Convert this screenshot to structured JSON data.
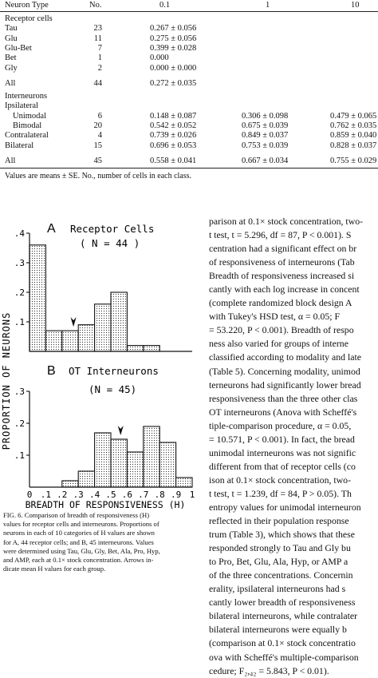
{
  "table": {
    "headers": [
      "Neuron Type",
      "No.",
      "0.1",
      "1",
      "10"
    ],
    "groups": [
      {
        "label": "Receptor cells",
        "rows": [
          {
            "name": "Tau",
            "indent": 1,
            "n": "23",
            "v01": "0.267 ± 0.056",
            "v1": "",
            "v10": ""
          },
          {
            "name": "Glu",
            "indent": 1,
            "n": "11",
            "v01": "0.275 ± 0.056",
            "v1": "",
            "v10": ""
          },
          {
            "name": "Glu-Bet",
            "indent": 1,
            "n": "7",
            "v01": "0.399 ± 0.028",
            "v1": "",
            "v10": ""
          },
          {
            "name": "Bet",
            "indent": 1,
            "n": "1",
            "v01": "0.000",
            "v1": "",
            "v10": ""
          },
          {
            "name": "Gly",
            "indent": 1,
            "n": "2",
            "v01": "0.000 ± 0.000",
            "v1": "",
            "v10": ""
          },
          {
            "name": "All",
            "indent": 1,
            "n": "44",
            "v01": "0.272 ± 0.035",
            "v1": "",
            "v10": "",
            "gap": true
          }
        ]
      },
      {
        "label": "Interneurons",
        "rows": [
          {
            "name": "Ipsilateral",
            "indent": 1,
            "n": "",
            "v01": "",
            "v1": "",
            "v10": ""
          },
          {
            "name": "Unimodal",
            "indent": 2,
            "n": "6",
            "v01": "0.148 ± 0.087",
            "v1": "0.306 ± 0.098",
            "v10": "0.479 ± 0.065"
          },
          {
            "name": "Bimodal",
            "indent": 2,
            "n": "20",
            "v01": "0.542 ± 0.052",
            "v1": "0.675 ± 0.039",
            "v10": "0.762 ± 0.035"
          },
          {
            "name": "Contralateral",
            "indent": 1,
            "n": "4",
            "v01": "0.739 ± 0.026",
            "v1": "0.849 ± 0.037",
            "v10": "0.859 ± 0.040"
          },
          {
            "name": "Bilateral",
            "indent": 1,
            "n": "15",
            "v01": "0.696 ± 0.053",
            "v1": "0.753 ± 0.039",
            "v10": "0.828 ± 0.037"
          },
          {
            "name": "All",
            "indent": 1,
            "n": "45",
            "v01": "0.558 ± 0.041",
            "v1": "0.667 ± 0.034",
            "v10": "0.755 ± 0.029",
            "gap": true
          }
        ]
      }
    ],
    "note": "Values are means ± SE. No., number of cells in each class."
  },
  "figure": {
    "y_axis_label": "PROPORTION  OF  NEURONS",
    "x_axis_label": "BREADTH  OF  RESPONSIVENESS (H)",
    "x_ticks": [
      "0",
      ".1",
      ".2",
      ".3",
      ".4",
      ".5",
      ".6",
      ".7",
      ".8",
      ".9",
      "1"
    ],
    "y_ticks_a": [
      ".4",
      ".3",
      ".2",
      ".1"
    ],
    "y_ticks_b": [
      ".3",
      ".2",
      ".1"
    ],
    "panel_a": {
      "letter": "A",
      "title": "Receptor Cells",
      "n_label": "( N = 44 )"
    },
    "panel_b": {
      "letter": "B",
      "title": "OT  Interneurons",
      "n_label": "(N = 45)"
    }
  },
  "chart_data": [
    {
      "type": "bar",
      "title": "Receptor Cells",
      "categories": [
        "0",
        ".1",
        ".2",
        ".3",
        ".4",
        ".5",
        ".6",
        ".7",
        ".8",
        ".9"
      ],
      "values": [
        0.36,
        0.07,
        0.07,
        0.09,
        0.16,
        0.2,
        0.02,
        0.02,
        0.0,
        0.0
      ],
      "mean_marker": 0.27,
      "xlabel": "BREADTH OF RESPONSIVENESS (H)",
      "ylabel": "PROPORTION OF NEURONS",
      "ylim": [
        0,
        0.4
      ],
      "grid": false
    },
    {
      "type": "bar",
      "title": "OT Interneurons",
      "categories": [
        "0",
        ".1",
        ".2",
        ".3",
        ".4",
        ".5",
        ".6",
        ".7",
        ".8",
        ".9"
      ],
      "values": [
        0.0,
        0.0,
        0.02,
        0.05,
        0.17,
        0.15,
        0.11,
        0.19,
        0.14,
        0.03
      ],
      "mean_marker": 0.56,
      "xlabel": "BREADTH OF RESPONSIVENESS (H)",
      "ylabel": "PROPORTION OF NEURONS",
      "ylim": [
        0,
        0.3
      ],
      "grid": false
    }
  ],
  "caption": {
    "lines": [
      "FIG. 6.   Comparison of breadth of responsiveness (H)",
      "values for receptor cells and interneurons. Proportions of",
      "neurons in each of 10 categories of H values are shown",
      "for A, 44 receptor cells; and B, 45 interneurons. Values",
      "were determined using Tau, Glu, Gly, Bet, Ala, Pro, Hyp,",
      "and AMP, each at 0.1× stock concentration. Arrows in-",
      "dicate mean H values for each group."
    ]
  },
  "body_text": {
    "lines": [
      "parison at 0.1× stock concentration, two-",
      "t test, t = 5.296, df = 87, P < 0.001). S",
      "centration had a significant effect on br",
      "of responsiveness of interneurons (Tab",
      "Breadth of responsiveness increased si",
      "cantly with each log increase in concent",
      "(complete randomized block design A",
      "with Tukey's HSD test, α = 0.05; F",
      "= 53.220, P < 0.001). Breadth of respo",
      "ness also varied for groups of interne",
      "classified according to modality and late",
      "(Table 5). Concerning modality, unimod",
      "terneurons had significantly lower bread",
      "responsiveness than the three other clas",
      "OT interneurons (Anova with Scheffé's",
      "tiple-comparison procedure, α = 0.05,",
      "= 10.571, P < 0.001). In fact, the bread",
      "unimodal interneurons was not signific",
      "different from that of receptor cells (co",
      "ison at 0.1× stock concentration, two-",
      "t test, t = 1.239, df = 84, P > 0.05). Th",
      "entropy values for unimodal interneuron",
      "reflected in their population response",
      "trum (Table 3), which shows that these",
      "responded strongly to Tau and Gly bu",
      "to Pro, Bet, Glu, Ala, Hyp, or AMP a",
      "of the three concentrations. Concernin",
      "erality, ipsilateral interneurons had s",
      "cantly lower breadth of responsiveness",
      "bilateral interneurons, while contralater",
      "bilateral interneurons were equally b",
      "(comparison at 0.1× stock concentratio",
      "ova with Scheffé's multiple-comparison",
      "cedure; F₂,₄₂ = 5.843, P < 0.01)."
    ]
  }
}
